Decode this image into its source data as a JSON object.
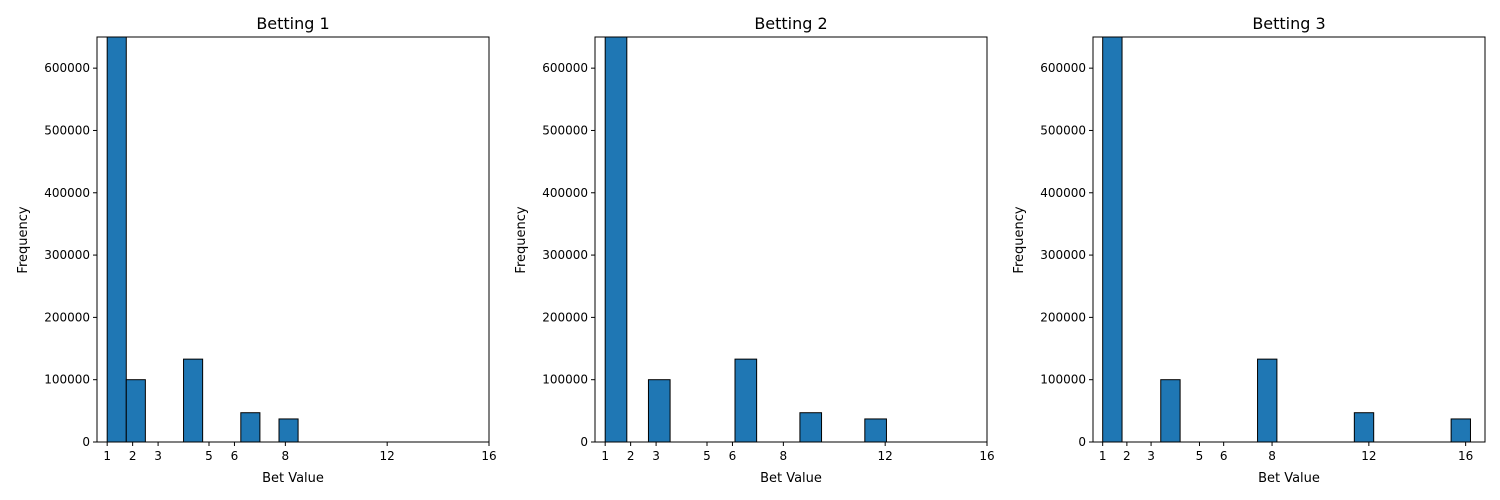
{
  "chart_data": [
    {
      "type": "bar",
      "title": "Betting 1",
      "xlabel": "Bet Value",
      "ylabel": "Frequency",
      "xlim": [
        0.6,
        16
      ],
      "ylim": [
        0,
        650000
      ],
      "xticks": [
        1,
        2,
        3,
        5,
        6,
        8,
        12,
        16
      ],
      "yticks": [
        0,
        100000,
        200000,
        300000,
        400000,
        500000,
        600000
      ],
      "bins": [
        {
          "x0": 1.0,
          "x1": 1.75,
          "value": 650000
        },
        {
          "x0": 1.75,
          "x1": 2.5,
          "value": 100000
        },
        {
          "x0": 2.5,
          "x1": 3.25,
          "value": 0
        },
        {
          "x0": 3.25,
          "x1": 4.0,
          "value": 0
        },
        {
          "x0": 4.0,
          "x1": 4.75,
          "value": 133000
        },
        {
          "x0": 4.75,
          "x1": 5.5,
          "value": 0
        },
        {
          "x0": 5.5,
          "x1": 6.25,
          "value": 0
        },
        {
          "x0": 6.25,
          "x1": 7.0,
          "value": 47000
        },
        {
          "x0": 7.0,
          "x1": 7.75,
          "value": 0
        },
        {
          "x0": 7.75,
          "x1": 8.5,
          "value": 37000
        }
      ],
      "grid": false
    },
    {
      "type": "bar",
      "title": "Betting 2",
      "xlabel": "Bet Value",
      "ylabel": "Frequency",
      "xlim": [
        0.6,
        16
      ],
      "ylim": [
        0,
        650000
      ],
      "xticks": [
        1,
        2,
        3,
        5,
        6,
        8,
        12,
        16
      ],
      "yticks": [
        0,
        100000,
        200000,
        300000,
        400000,
        500000,
        600000
      ],
      "bins": [
        {
          "x0": 1.0,
          "x1": 1.85,
          "value": 650000
        },
        {
          "x0": 1.85,
          "x1": 2.7,
          "value": 0
        },
        {
          "x0": 2.7,
          "x1": 3.55,
          "value": 100000
        },
        {
          "x0": 3.55,
          "x1": 4.4,
          "value": 0
        },
        {
          "x0": 4.4,
          "x1": 5.25,
          "value": 0
        },
        {
          "x0": 5.25,
          "x1": 6.1,
          "value": 0
        },
        {
          "x0": 6.1,
          "x1": 6.95,
          "value": 133000
        },
        {
          "x0": 6.95,
          "x1": 7.8,
          "value": 0
        },
        {
          "x0": 7.8,
          "x1": 8.65,
          "value": 0
        },
        {
          "x0": 8.65,
          "x1": 9.5,
          "value": 47000
        },
        {
          "x0": 9.5,
          "x1": 10.35,
          "value": 0
        },
        {
          "x0": 10.35,
          "x1": 11.2,
          "value": 0
        },
        {
          "x0": 11.2,
          "x1": 12.05,
          "value": 37000
        }
      ],
      "grid": false
    },
    {
      "type": "bar",
      "title": "Betting 3",
      "xlabel": "Bet Value",
      "ylabel": "Frequency",
      "xlim": [
        0.6,
        16.8
      ],
      "ylim": [
        0,
        650000
      ],
      "xticks": [
        1,
        2,
        3,
        5,
        6,
        8,
        12,
        16
      ],
      "yticks": [
        0,
        100000,
        200000,
        300000,
        400000,
        500000,
        600000
      ],
      "bins": [
        {
          "x0": 1.0,
          "x1": 1.8,
          "value": 650000
        },
        {
          "x0": 1.8,
          "x1": 2.6,
          "value": 0
        },
        {
          "x0": 2.6,
          "x1": 3.4,
          "value": 0
        },
        {
          "x0": 3.4,
          "x1": 4.2,
          "value": 100000
        },
        {
          "x0": 4.2,
          "x1": 5.0,
          "value": 0
        },
        {
          "x0": 5.0,
          "x1": 5.8,
          "value": 0
        },
        {
          "x0": 5.8,
          "x1": 6.6,
          "value": 0
        },
        {
          "x0": 6.6,
          "x1": 7.4,
          "value": 0
        },
        {
          "x0": 7.4,
          "x1": 8.2,
          "value": 133000
        },
        {
          "x0": 8.2,
          "x1": 9.0,
          "value": 0
        },
        {
          "x0": 9.0,
          "x1": 9.8,
          "value": 0
        },
        {
          "x0": 9.8,
          "x1": 10.6,
          "value": 0
        },
        {
          "x0": 10.6,
          "x1": 11.4,
          "value": 0
        },
        {
          "x0": 11.4,
          "x1": 12.2,
          "value": 47000
        },
        {
          "x0": 12.2,
          "x1": 13.0,
          "value": 0
        },
        {
          "x0": 13.0,
          "x1": 13.8,
          "value": 0
        },
        {
          "x0": 13.8,
          "x1": 14.6,
          "value": 0
        },
        {
          "x0": 14.6,
          "x1": 15.4,
          "value": 0
        },
        {
          "x0": 15.4,
          "x1": 16.2,
          "value": 37000
        }
      ],
      "grid": false
    }
  ],
  "colors": {
    "bar_fill": "#1f77b4",
    "bar_edge": "#000000",
    "axis": "#000000",
    "background": "#ffffff"
  }
}
